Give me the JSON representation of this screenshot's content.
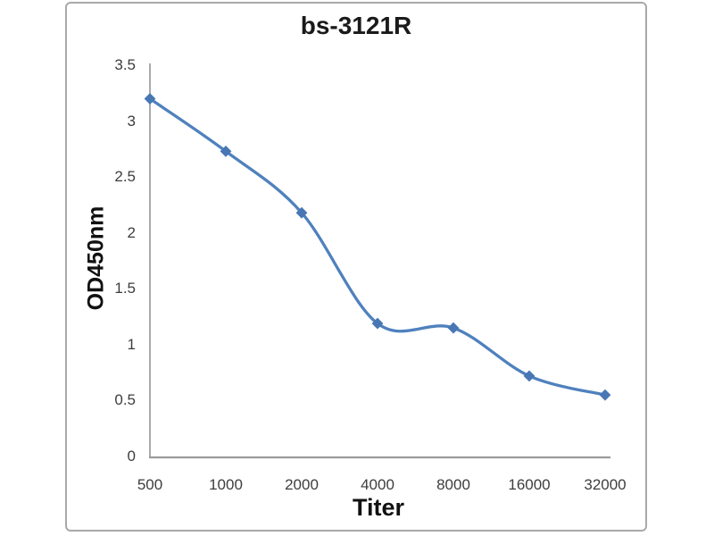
{
  "chart_data": {
    "type": "line",
    "title": "bs-3121R",
    "xlabel": "Titer",
    "ylabel": "OD450nm",
    "categories": [
      "500",
      "1000",
      "2000",
      "4000",
      "8000",
      "16000",
      "32000"
    ],
    "values": [
      3.2,
      2.73,
      2.18,
      1.19,
      1.15,
      0.72,
      0.55
    ],
    "ylim": [
      0,
      3.5
    ],
    "ytick_labels": [
      "0",
      "0.5",
      "1",
      "1.5",
      "2",
      "2.5",
      "3",
      "3.5"
    ],
    "ytick_values": [
      0,
      0.5,
      1,
      1.5,
      2,
      2.5,
      3,
      3.5
    ],
    "grid": false,
    "legend": "none",
    "smooth": true,
    "marker": "diamond",
    "line_color": "#4f81bd",
    "marker_color": "#4877b4",
    "axis_color": "#9b9b9b",
    "tick_color": "#3d3d3d",
    "title_color": "#1a1a1a",
    "frame_border_color": "#a9a9a9",
    "background_color": "#ffffff"
  }
}
